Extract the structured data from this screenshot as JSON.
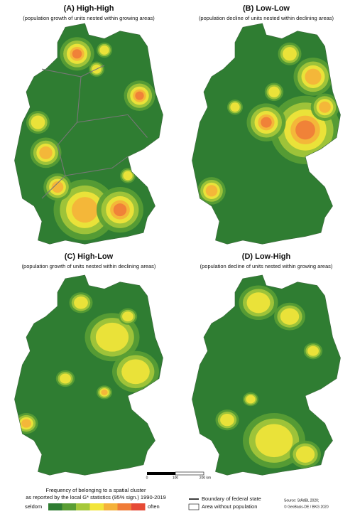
{
  "panels": [
    {
      "title": "(A) High-High",
      "subtitle": "(population growth of units nested within growing areas)"
    },
    {
      "title": "(B) Low-Low",
      "subtitle": "(population decline of units nested within declining areas)"
    },
    {
      "title": "(C) High-Low",
      "subtitle": "(population growth of units nested within declining areas)"
    },
    {
      "title": "(D) Low-High",
      "subtitle": "(population decline of units nested within growing areas)"
    }
  ],
  "scale_bar": {
    "labels": [
      "0",
      "100",
      "200 km"
    ]
  },
  "legend": {
    "title_lines": [
      "Frequency of belonging to a spatial cluster",
      "as reported by the local G* statistics (95% sign.) 1990-2019"
    ],
    "low": "seldom",
    "high": "often",
    "colors": [
      "#2f7d32",
      "#5a9e34",
      "#a6c83a",
      "#f2e53a",
      "#f5b23a",
      "#f07c38",
      "#e64a35"
    ],
    "boundary": "Boundary of federal state",
    "no_population": "Area without population"
  },
  "source": [
    "Source: StÄdBL 2020;",
    "© GeoBasis-DE / BKG 2020"
  ]
}
